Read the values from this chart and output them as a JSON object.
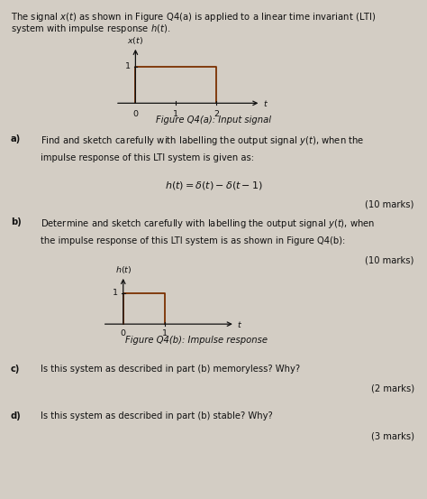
{
  "bg_color": "#d3cdc4",
  "text_color": "#111111",
  "title_line1": "The signal $x(t)$ as shown in Figure Q4(a) is applied to a linear time invariant (LTI)",
  "title_line2": "system with impulse response $h(t)$.",
  "fig_a_ylabel": "$x(t)$",
  "fig_a_xlabel": "$t$",
  "fig_a_caption": "Figure Q4(a): Input signal",
  "fig_a_tick1": "0",
  "fig_a_tick2": "1",
  "fig_a_tick3": "2",
  "fig_a_level": "1",
  "qa_label": "a)",
  "qa_text": "Find and sketch carefully with labelling the output signal $y(t)$, when the",
  "qa_text2": "impulse response of this LTI system is given as:",
  "qa_formula": "$h(t) = \\delta(t) - \\delta(t-1)$",
  "qa_marks": "(10 marks)",
  "qb_label": "b)",
  "qb_text": "Determine and sketch carefully with labelling the output signal $y(t)$, when",
  "qb_text2": "the impulse response of this LTI system is as shown in Figure Q4(b):",
  "qb_marks": "(10 marks)",
  "fig_b_ylabel": "$h(t)$",
  "fig_b_xlabel": "$t$",
  "fig_b_caption": "Figure Q4(b): Impulse response",
  "fig_b_tick1": "0",
  "fig_b_tick2": "1",
  "fig_b_level": "1",
  "qc_label": "c)",
  "qc_text": "Is this system as described in part (b) memoryless? Why?",
  "qc_marks": "(2 marks)",
  "qd_label": "d)",
  "qd_text": "Is this system as described in part (b) stable? Why?",
  "qd_marks": "(3 marks)",
  "signal_color": "#7B3000",
  "axis_color": "#111111"
}
